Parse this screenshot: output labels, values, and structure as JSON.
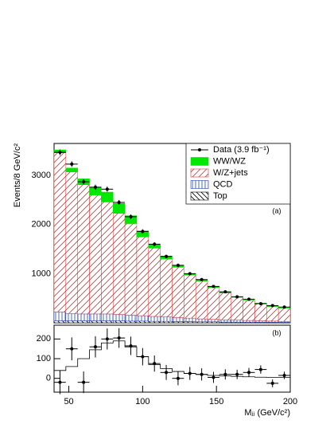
{
  "chart_data": [
    {
      "type": "stacked-histogram",
      "ylabel": "Events/8 GeV/c²",
      "label": "(a)",
      "bins": [
        40,
        48,
        56,
        64,
        72,
        80,
        88,
        96,
        104,
        112,
        120,
        128,
        136,
        144,
        152,
        160,
        168,
        176,
        184,
        192,
        200
      ],
      "xlim": [
        40,
        200
      ],
      "ylim": [
        0,
        3650
      ],
      "yticks": [
        1000,
        2000,
        3000
      ],
      "legend": "upper right",
      "series": [
        {
          "name": "Top",
          "color": "#000000",
          "pattern": "anti",
          "values": [
            40,
            40,
            40,
            40,
            40,
            40,
            35,
            35,
            30,
            30,
            25,
            25,
            20,
            20,
            15,
            15,
            12,
            10,
            10,
            8
          ]
        },
        {
          "name": "QCD",
          "color": "#2040c0",
          "pattern": "vert",
          "values": [
            180,
            150,
            140,
            140,
            140,
            130,
            120,
            110,
            100,
            90,
            80,
            70,
            60,
            50,
            45,
            40,
            35,
            30,
            25,
            20
          ]
        },
        {
          "name": "W/Z+jets",
          "color": "#e03030",
          "pattern": "diag",
          "values": [
            3240,
            2880,
            2630,
            2420,
            2280,
            2060,
            1865,
            1605,
            1390,
            1180,
            1025,
            875,
            770,
            650,
            545,
            465,
            403,
            350,
            297,
            266
          ]
        },
        {
          "name": "WW/WZ",
          "color": "#00e800",
          "pattern": "solid",
          "values": [
            60,
            80,
            120,
            160,
            200,
            200,
            160,
            120,
            80,
            60,
            40,
            30,
            20,
            20,
            15,
            10,
            10,
            10,
            8,
            6
          ]
        }
      ],
      "data": {
        "name": "Data (3.9 fb⁻¹)",
        "values": [
          3470,
          3230,
          2870,
          2760,
          2720,
          2450,
          2160,
          1860,
          1600,
          1350,
          1170,
          1000,
          880,
          740,
          630,
          530,
          480,
          390,
          350,
          320
        ],
        "errors": [
          59,
          57,
          54,
          53,
          52,
          49,
          46,
          43,
          40,
          37,
          34,
          32,
          30,
          27,
          25,
          23,
          22,
          20,
          19,
          18
        ]
      }
    },
    {
      "type": "residual",
      "label": "(b)",
      "xlabel": "Mⱼⱼ (GeV/c²)",
      "xlim": [
        40,
        200
      ],
      "xticks": [
        50,
        100,
        150,
        200
      ],
      "ylim": [
        -70,
        270
      ],
      "yticks": [
        0,
        100,
        200
      ],
      "x": [
        44,
        52,
        60,
        68,
        76,
        84,
        92,
        100,
        108,
        116,
        124,
        132,
        140,
        148,
        156,
        164,
        172,
        180,
        188,
        196
      ],
      "values": [
        -20,
        150,
        -20,
        160,
        200,
        205,
        165,
        110,
        75,
        30,
        0,
        25,
        20,
        5,
        20,
        20,
        30,
        45,
        -25,
        15
      ],
      "errors": [
        60,
        58,
        55,
        54,
        53,
        50,
        47,
        44,
        41,
        38,
        35,
        33,
        31,
        28,
        26,
        24,
        23,
        21,
        20,
        19
      ],
      "line": [
        40,
        60,
        100,
        145,
        180,
        190,
        160,
        110,
        70,
        50,
        35,
        25,
        20,
        15,
        12,
        10,
        8,
        6,
        5,
        5
      ]
    }
  ]
}
